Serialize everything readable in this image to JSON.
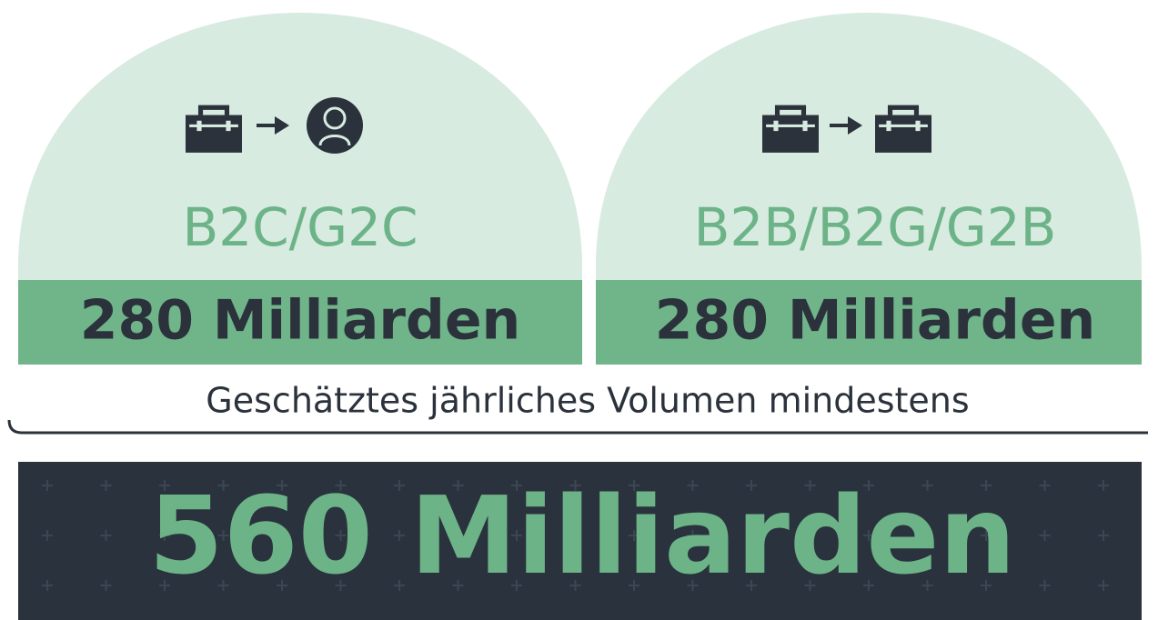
{
  "segments": [
    {
      "label": "B2C/G2C",
      "amount": "280 Milliarden"
    },
    {
      "label": "B2B/B2G/G2B",
      "amount": "280 Milliarden"
    }
  ],
  "caption": "Geschätztes jährliches Volumen mindestens",
  "total": "560 Milliarden"
}
